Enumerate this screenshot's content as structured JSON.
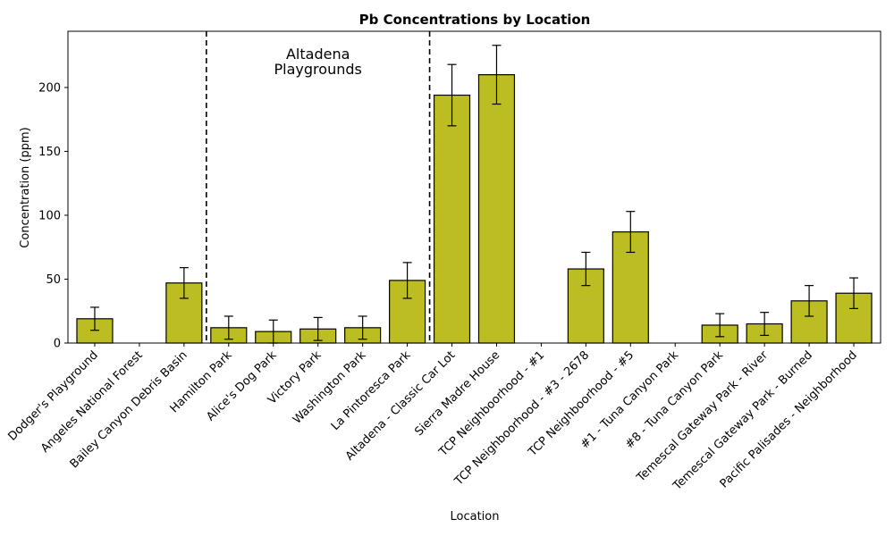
{
  "chart_data": {
    "type": "bar",
    "title": "Pb Concentrations by Location",
    "xlabel": "Location",
    "ylabel": "Concentration (ppm)",
    "ylim": [
      0,
      244
    ],
    "yticks": [
      0,
      50,
      100,
      150,
      200
    ],
    "grid": false,
    "bar_color": "#bcbd22",
    "categories": [
      "Dodger's Playground",
      "Angeles National Forest",
      "Bailey Canyon Debris Basin",
      "Hamilton Park",
      "Alice's Dog Park",
      "Victory Park",
      "Washington Park",
      "La Pintoresca Park",
      "Altadena - Classic Car Lot",
      "Sierra Madre House",
      "TCP Neighboorhood - #1",
      "TCP Neighboorhood - #3 - 2678",
      "TCP Neighboorhood - #5",
      "#1 - Tuna Canyon Park",
      "#8 - Tuna Canyon Park",
      "Temescal Gateway Park - River",
      "Temescal Gateway Park - Burned",
      "Pacific Palisades - Neighborhood"
    ],
    "values": [
      19,
      null,
      47,
      12,
      9,
      11,
      12,
      49,
      194,
      210,
      null,
      58,
      87,
      null,
      14,
      15,
      33,
      39
    ],
    "error": [
      9,
      null,
      12,
      9,
      9,
      9,
      9,
      14,
      24,
      23,
      null,
      13,
      16,
      null,
      9,
      9,
      12,
      12
    ],
    "annotations": [
      {
        "text": "Altadena\nPlaygrounds",
        "lines": [
          "Altadena",
          "Playgrounds"
        ]
      }
    ],
    "region_dividers_between": [
      [
        2,
        3
      ],
      [
        7,
        8
      ]
    ]
  }
}
